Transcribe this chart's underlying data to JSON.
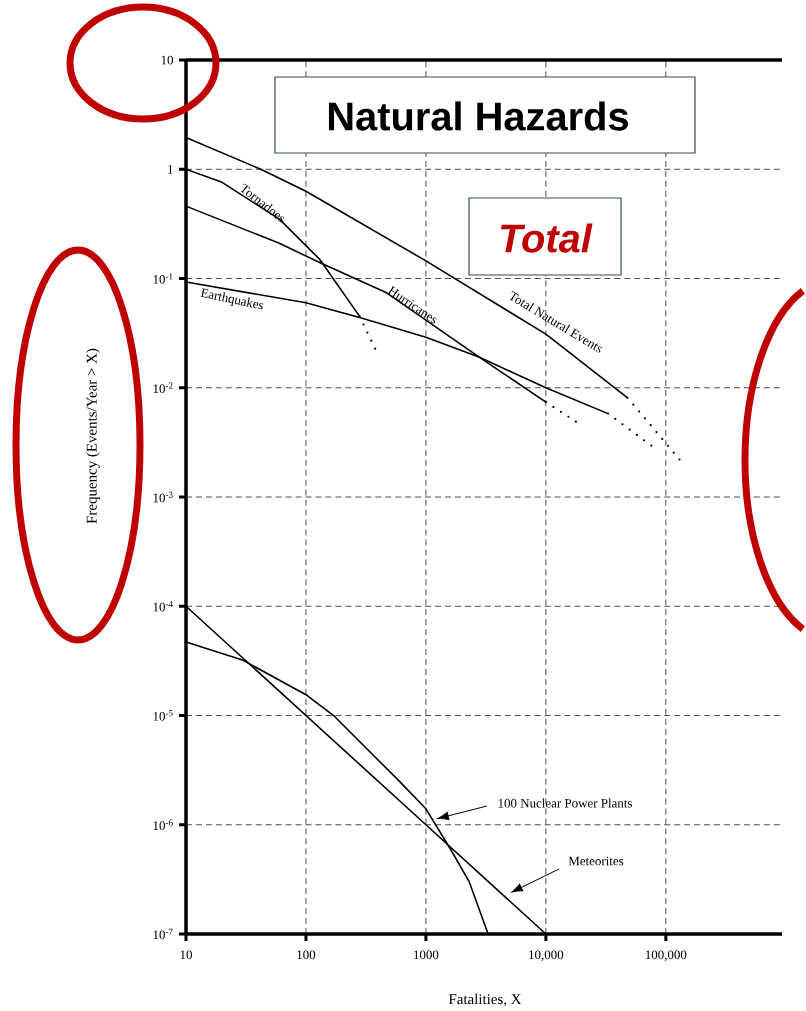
{
  "chart_data": {
    "type": "line",
    "title": "Natural Hazards",
    "xlabel": "Fatalities, X",
    "ylabel": "Frequency (Events/Year > X)",
    "annotations": [
      "Total"
    ],
    "log": "xy",
    "grid": true,
    "line_style": "solid",
    "xlim": [
      10,
      930000
    ],
    "ylim": [
      1e-07,
      10
    ],
    "xticks": [
      10,
      100,
      1000,
      {
        "value": 10000,
        "label": "10,000"
      },
      {
        "value": 100000,
        "label": "100,000"
      }
    ],
    "yticks": [
      {
        "value": 1e-07,
        "label": "10$^{-7}$"
      },
      {
        "value": 1e-06,
        "label": "10$^{-6}$"
      },
      {
        "value": 1e-05,
        "label": "10$^{-5}$"
      },
      {
        "value": 0.0001,
        "label": "10$^{-4}$"
      },
      {
        "value": 0.001,
        "label": "10$^{-3}$"
      },
      {
        "value": 0.01,
        "label": "10$^{-2}$"
      },
      {
        "value": 0.1,
        "label": "10$^{-1}$"
      },
      1,
      10
    ],
    "series": [
      {
        "name": "Total Natural Events",
        "color": "#000000",
        "x": [
          10,
          42,
          100,
          1000,
          10000,
          48000
        ],
        "values": [
          1.95,
          1.0,
          0.63,
          0.145,
          0.031,
          0.0081
        ]
      },
      {
        "name": "Tornadoes",
        "color": "#000000",
        "x": [
          10,
          20,
          60,
          130,
          280
        ],
        "values": [
          1.0,
          0.76,
          0.35,
          0.15,
          0.045
        ]
      },
      {
        "name": "Hurricanes",
        "color": "#000000",
        "x": [
          10,
          60,
          130,
          470,
          2800,
          10000
        ],
        "values": [
          0.46,
          0.21,
          0.14,
          0.074,
          0.019,
          0.0074
        ]
      },
      {
        "name": "Earthquakes",
        "color": "#000000",
        "x": [
          10,
          100,
          280,
          1000,
          2800,
          10000,
          33000
        ],
        "values": [
          0.093,
          0.06,
          0.044,
          0.029,
          0.019,
          0.01,
          0.0058
        ]
      },
      {
        "name": "Meteorites",
        "color": "#000000",
        "x": [
          10,
          100,
          1000,
          10000
        ],
        "values": [
          0.0001,
          1e-05,
          1e-06,
          1e-07
        ]
      },
      {
        "name": "100 Nuclear Power Plants",
        "color": "#000000",
        "x": [
          10,
          30,
          100,
          170,
          580,
          1000,
          1600,
          2300,
          3300
        ],
        "values": [
          4.7e-05,
          3.2e-05,
          1.55e-05,
          1e-05,
          2.6e-06,
          1.4e-06,
          6e-07,
          3e-07,
          1e-07
        ]
      },
      {
        "color": "#000000",
        "line_style": "dotted",
        "x": [
          48000,
          135000
        ],
        "values": [
          0.0081,
          0.0021
        ]
      },
      {
        "color": "#000000",
        "line_style": "dotted",
        "x": [
          280,
          400
        ],
        "values": [
          0.045,
          0.02
        ]
      },
      {
        "color": "#000000",
        "line_style": "dotted",
        "x": [
          10000,
          20000
        ],
        "values": [
          0.0074,
          0.0045
        ]
      },
      {
        "color": "#000000",
        "line_style": "dotted",
        "x": [
          33000,
          81000
        ],
        "values": [
          0.0058,
          0.0028
        ]
      }
    ]
  }
}
